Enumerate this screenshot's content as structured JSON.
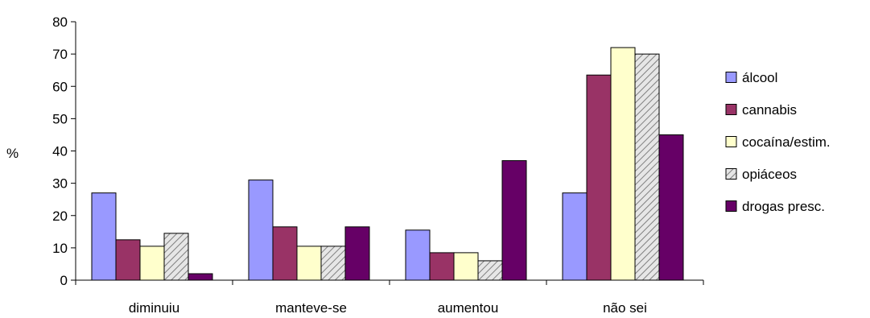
{
  "chart_data": {
    "type": "bar",
    "title": "",
    "xlabel": "",
    "ylabel": "%",
    "ylim": [
      0,
      80
    ],
    "yticks": [
      0,
      10,
      20,
      30,
      40,
      50,
      60,
      70,
      80
    ],
    "grid": false,
    "legend_position": "right",
    "categories": [
      "diminuiu",
      "manteve-se",
      "aumentou",
      "não sei"
    ],
    "series": [
      {
        "name": "álcool",
        "color": "#9999FF",
        "pattern": "solid",
        "values": [
          27,
          31,
          15.5,
          27
        ]
      },
      {
        "name": "cannabis",
        "color": "#993366",
        "pattern": "solid",
        "values": [
          12.5,
          16.5,
          8.5,
          63.5
        ]
      },
      {
        "name": "cocaína/estim.",
        "color": "#FFFFCC",
        "pattern": "solid",
        "values": [
          10.5,
          10.5,
          8.5,
          72
        ]
      },
      {
        "name": "opiáceos",
        "color": "#E0E0E0",
        "pattern": "hatch",
        "values": [
          14.5,
          10.5,
          6,
          70
        ]
      },
      {
        "name": "drogas presc.",
        "color": "#660066",
        "pattern": "solid",
        "values": [
          2,
          16.5,
          37,
          45
        ]
      }
    ]
  }
}
